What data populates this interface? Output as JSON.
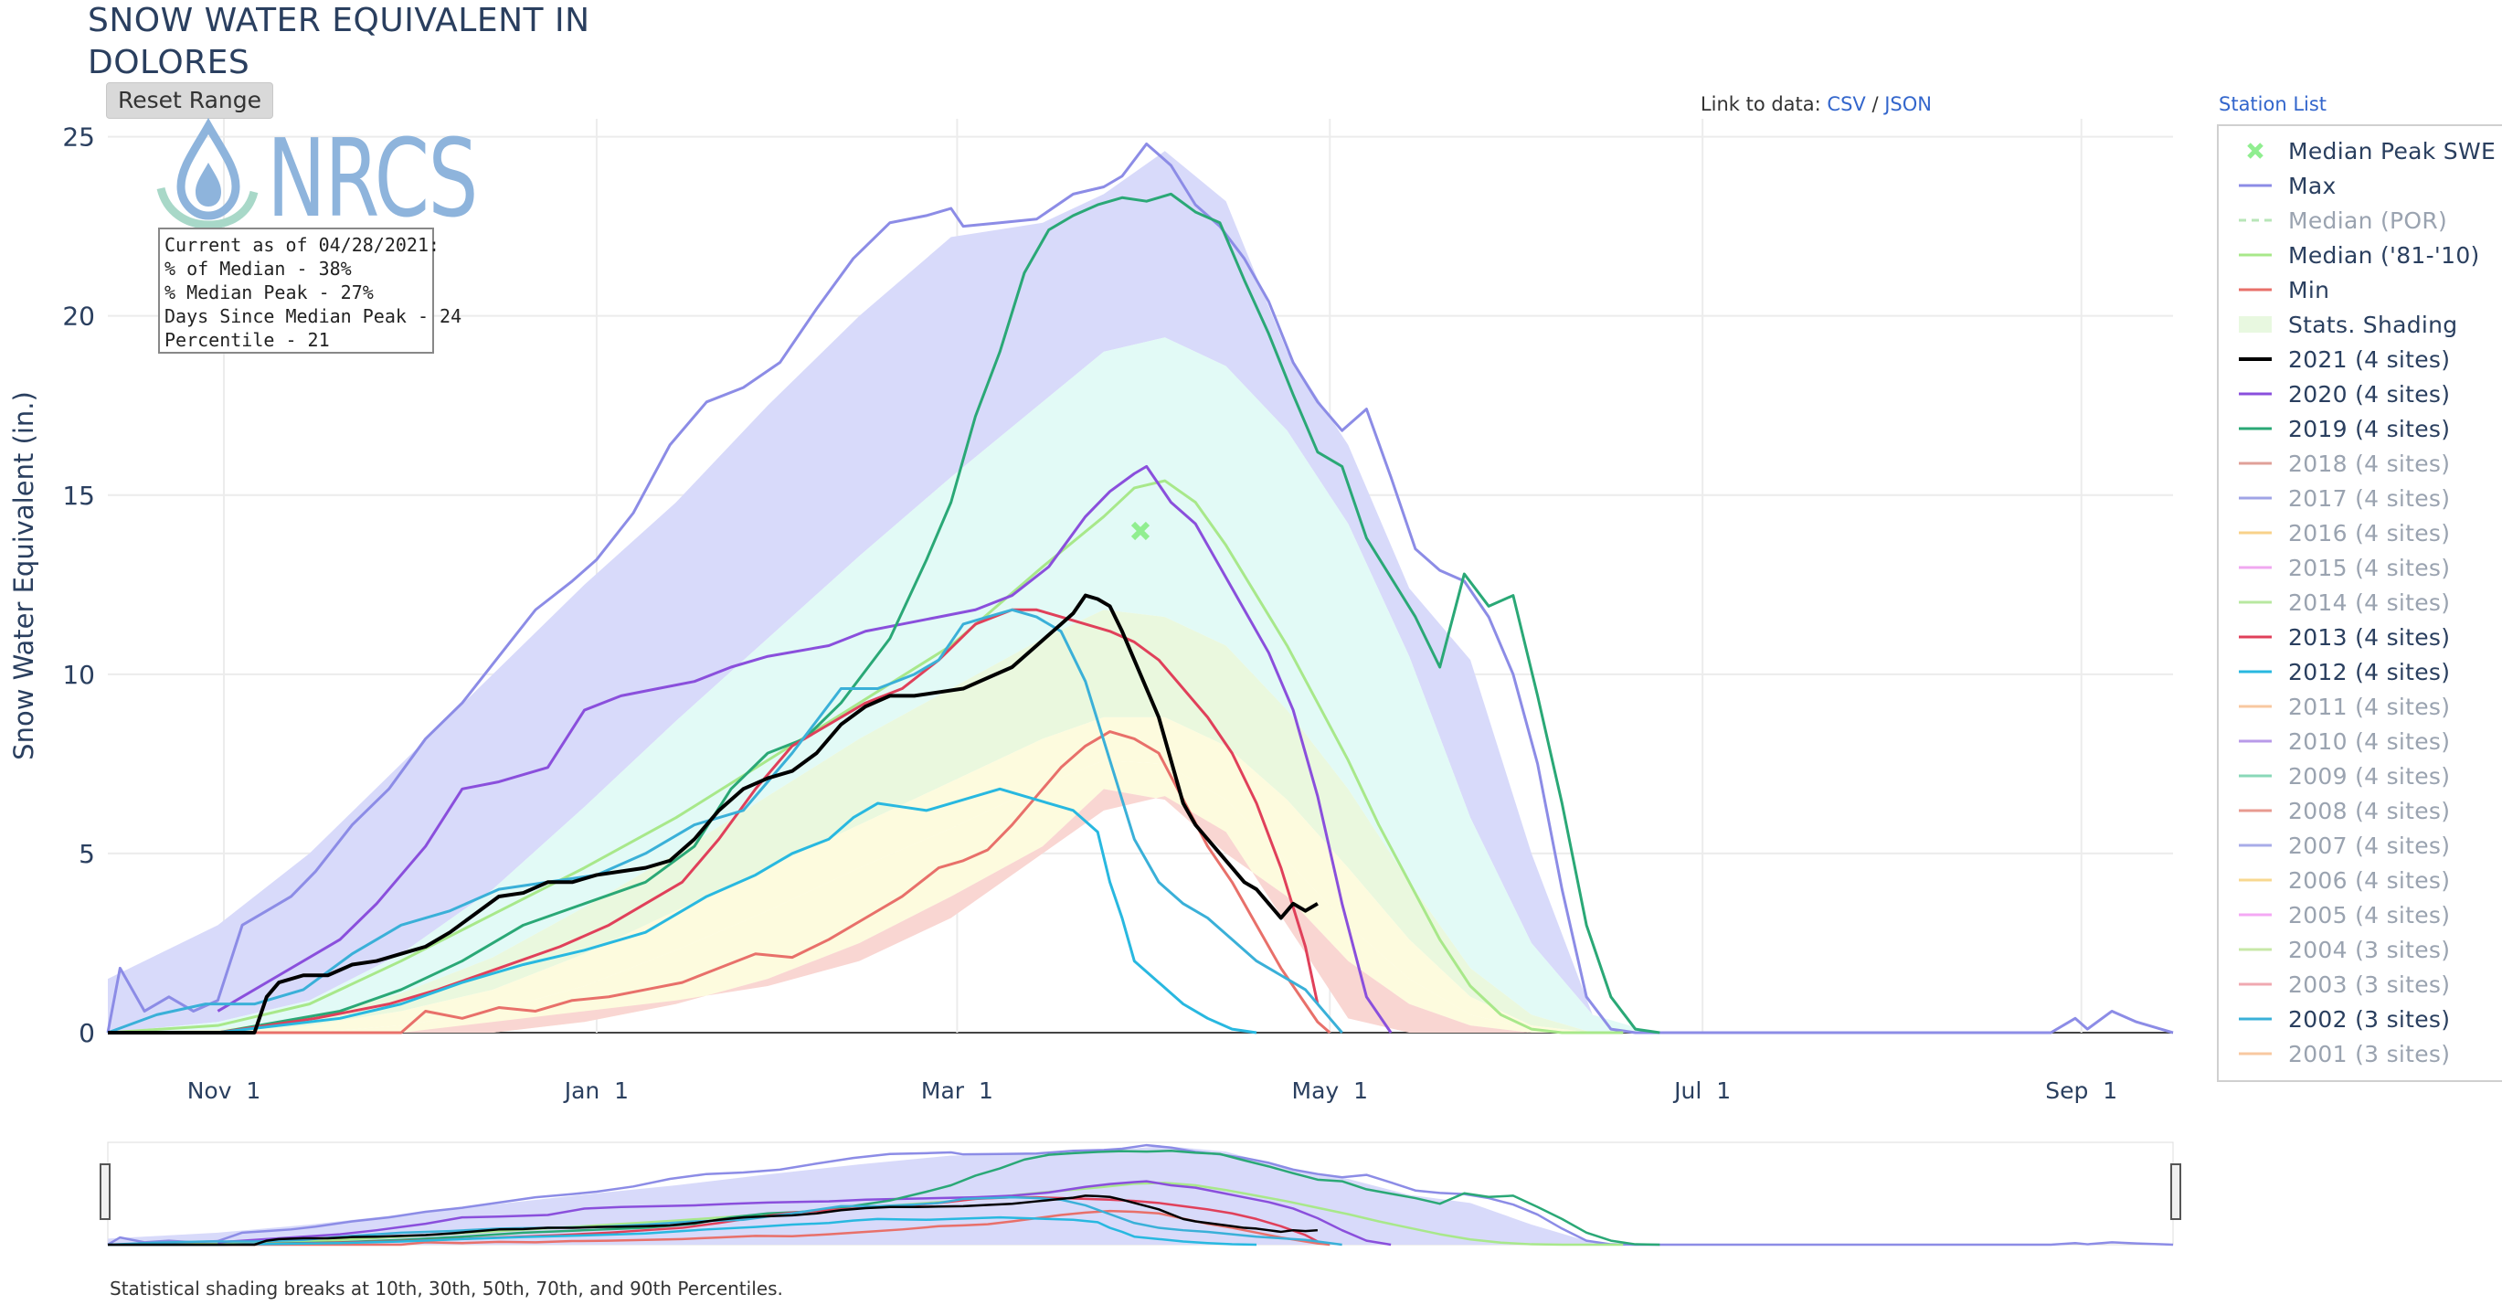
{
  "page": {
    "title_line1": "SNOW WATER EQUIVALENT IN",
    "title_line2": "DOLORES",
    "reset_button": "Reset Range",
    "link_label": "Link to data:",
    "link_csv": "CSV",
    "link_sep": "/",
    "link_json": "JSON",
    "station_list": "Station List",
    "footnote": "Statistical shading breaks at 10th, 30th, 50th, 70th, and 90th Percentiles."
  },
  "logo": {
    "text": "NRCS"
  },
  "info_box": {
    "line1": "Current as of 04/28/2021:",
    "line2": "% of Median - 38%",
    "line3": "% Median Peak - 27%",
    "line4": "Days Since Median Peak - 24",
    "line5": "Percentile - 21"
  },
  "legend": [
    {
      "label": "Median Peak SWE",
      "color": "#90ee90",
      "kind": "marker",
      "active": true
    },
    {
      "label": "Max",
      "color": "#8c8ce6",
      "kind": "line",
      "active": true
    },
    {
      "label": "Median (POR)",
      "color": "#b8e6b8",
      "kind": "dash",
      "active": false
    },
    {
      "label": "Median ('81-'10)",
      "color": "#a8e88a",
      "kind": "line",
      "active": true
    },
    {
      "label": "Min",
      "color": "#e8706a",
      "kind": "line",
      "active": true
    },
    {
      "label": "Stats. Shading",
      "color": "#e8f8e0",
      "kind": "box",
      "active": true
    },
    {
      "label": "2021 (4 sites)",
      "color": "#000000",
      "kind": "line",
      "active": true
    },
    {
      "label": "2020 (4 sites)",
      "color": "#8a4fdc",
      "kind": "line",
      "active": true
    },
    {
      "label": "2019 (4 sites)",
      "color": "#2aa876",
      "kind": "line",
      "active": true
    },
    {
      "label": "2018 (4 sites)",
      "color": "#e0a098",
      "kind": "line",
      "active": false
    },
    {
      "label": "2017 (4 sites)",
      "color": "#a0a4e6",
      "kind": "line",
      "active": false
    },
    {
      "label": "2016 (4 sites)",
      "color": "#f8d28a",
      "kind": "line",
      "active": false
    },
    {
      "label": "2015 (4 sites)",
      "color": "#f0a8f0",
      "kind": "line",
      "active": false
    },
    {
      "label": "2014 (4 sites)",
      "color": "#b8e8a0",
      "kind": "line",
      "active": false
    },
    {
      "label": "2013 (4 sites)",
      "color": "#e0405a",
      "kind": "line",
      "active": true
    },
    {
      "label": "2012 (4 sites)",
      "color": "#28b8e0",
      "kind": "line",
      "active": true
    },
    {
      "label": "2011 (4 sites)",
      "color": "#f8c8a0",
      "kind": "line",
      "active": false
    },
    {
      "label": "2010 (4 sites)",
      "color": "#b89ae8",
      "kind": "line",
      "active": false
    },
    {
      "label": "2009 (4 sites)",
      "color": "#8ad8b8",
      "kind": "line",
      "active": false
    },
    {
      "label": "2008 (4 sites)",
      "color": "#e89a90",
      "kind": "line",
      "active": false
    },
    {
      "label": "2007 (4 sites)",
      "color": "#a8ace8",
      "kind": "line",
      "active": false
    },
    {
      "label": "2006 (4 sites)",
      "color": "#f8d890",
      "kind": "line",
      "active": false
    },
    {
      "label": "2005 (4 sites)",
      "color": "#f4a8f4",
      "kind": "line",
      "active": false
    },
    {
      "label": "2004 (3 sites)",
      "color": "#c8e8a8",
      "kind": "line",
      "active": false
    },
    {
      "label": "2003 (3 sites)",
      "color": "#f0a8b0",
      "kind": "line",
      "active": false
    },
    {
      "label": "2002 (3 sites)",
      "color": "#3ab0d8",
      "kind": "line",
      "active": true
    },
    {
      "label": "2001 (3 sites)",
      "color": "#f8c8a0",
      "kind": "line",
      "active": false
    }
  ],
  "chart_data": {
    "type": "line",
    "title": "SNOW WATER EQUIVALENT IN DOLORES",
    "ylabel": "Snow Water Equivalent (in.)",
    "xlabel": "",
    "x_unit": "day-of-water-year (Oct 1 = 0)",
    "xlim": [
      12,
      350
    ],
    "ylim": [
      0,
      25.5
    ],
    "yticks": [
      0,
      5,
      10,
      15,
      20,
      25
    ],
    "xticks": [
      {
        "label": "Nov 1",
        "day": 31
      },
      {
        "label": "Jan 1",
        "day": 92
      },
      {
        "label": "Mar 1",
        "day": 151
      },
      {
        "label": "May 1",
        "day": 212
      },
      {
        "label": "Jul 1",
        "day": 273
      },
      {
        "label": "Sep 1",
        "day": 335
      }
    ],
    "grid": true,
    "legend_position": "right",
    "median_peak": {
      "day": 181,
      "value": 14.0
    },
    "shading": {
      "x": [
        12,
        30,
        45,
        60,
        75,
        90,
        105,
        120,
        135,
        150,
        165,
        175,
        185,
        195,
        205,
        215,
        225,
        235,
        245,
        255,
        265
      ],
      "p10": [
        0,
        0,
        0,
        0,
        0,
        0.3,
        0.8,
        1.5,
        2.5,
        3.8,
        5.2,
        6.8,
        6.5,
        5.0,
        3.8,
        2.0,
        0.8,
        0.2,
        0,
        0,
        0
      ],
      "p30": [
        0,
        0,
        0,
        0.2,
        0.6,
        1.3,
        2.3,
        3.4,
        4.6,
        5.7,
        6.9,
        7.6,
        7.5,
        6.5,
        4.8,
        3.0,
        1.5,
        0.5,
        0.1,
        0,
        0
      ],
      "p50": [
        0,
        0,
        0.2,
        0.6,
        1.2,
        2.2,
        3.4,
        4.6,
        5.8,
        7.0,
        8.2,
        8.8,
        8.8,
        8.0,
        6.5,
        4.6,
        2.6,
        1.0,
        0.2,
        0,
        0
      ],
      "p70": [
        0,
        0.1,
        0.4,
        1.1,
        2.1,
        3.5,
        5.0,
        6.6,
        8.2,
        9.6,
        11.0,
        11.8,
        11.6,
        10.8,
        9.0,
        6.8,
        4.2,
        1.8,
        0.5,
        0,
        0
      ],
      "p90": [
        0,
        0.3,
        0.9,
        2.2,
        4.0,
        6.3,
        8.7,
        11.0,
        13.3,
        15.5,
        17.6,
        19.0,
        19.4,
        18.6,
        16.8,
        14.2,
        10.5,
        6.0,
        2.5,
        0.5,
        0
      ],
      "max": [
        1.5,
        3.0,
        5.0,
        7.5,
        10.0,
        12.5,
        14.8,
        17.5,
        20.0,
        22.2,
        22.6,
        23.4,
        24.6,
        23.2,
        19.0,
        16.4,
        12.4,
        10.4,
        5.0,
        0.5,
        0
      ],
      "min": [
        0,
        0,
        0,
        0,
        0.3,
        0.6,
        0.9,
        1.3,
        2.0,
        3.2,
        5.0,
        6.2,
        6.6,
        5.6,
        3.0,
        0.4,
        0,
        0,
        0,
        0,
        0
      ]
    },
    "series": [
      {
        "name": "Max",
        "color": "#8c8ce6",
        "width": 3,
        "x": [
          12,
          14,
          18,
          22,
          26,
          30,
          34,
          38,
          42,
          46,
          52,
          58,
          64,
          70,
          76,
          82,
          88,
          92,
          98,
          104,
          110,
          116,
          122,
          128,
          134,
          140,
          146,
          150,
          152,
          158,
          164,
          170,
          175,
          178,
          182,
          186,
          190,
          194,
          198,
          202,
          206,
          210,
          214,
          218,
          222,
          226,
          230,
          234,
          238,
          242,
          246,
          250,
          254,
          258,
          262,
          266,
          270,
          274,
          330,
          334,
          336,
          340,
          344,
          348,
          350
        ],
        "y": [
          0,
          1.8,
          0.6,
          1.0,
          0.6,
          0.9,
          3.0,
          3.4,
          3.8,
          4.5,
          5.8,
          6.8,
          8.2,
          9.2,
          10.5,
          11.8,
          12.6,
          13.2,
          14.5,
          16.4,
          17.6,
          18.0,
          18.7,
          20.2,
          21.6,
          22.6,
          22.8,
          23.0,
          22.5,
          22.6,
          22.7,
          23.4,
          23.6,
          23.9,
          24.8,
          24.2,
          23.1,
          22.5,
          21.6,
          20.4,
          18.7,
          17.6,
          16.8,
          17.4,
          15.5,
          13.5,
          12.9,
          12.6,
          11.6,
          10.0,
          7.5,
          4.0,
          1.0,
          0.1,
          0,
          0,
          0,
          0,
          0,
          0.4,
          0.1,
          0.6,
          0.3,
          0.1,
          0
        ]
      },
      {
        "name": "Median ('81-'10)",
        "color": "#a8e88a",
        "width": 3,
        "x": [
          12,
          30,
          45,
          60,
          75,
          90,
          105,
          120,
          135,
          150,
          165,
          175,
          180,
          185,
          190,
          195,
          200,
          205,
          210,
          215,
          220,
          225,
          230,
          235,
          240,
          245,
          250,
          255,
          260
        ],
        "y": [
          0,
          0.2,
          0.8,
          2.0,
          3.3,
          4.6,
          6.0,
          7.6,
          9.2,
          10.8,
          13.0,
          14.4,
          15.2,
          15.4,
          14.8,
          13.6,
          12.2,
          10.8,
          9.2,
          7.6,
          5.8,
          4.2,
          2.6,
          1.3,
          0.5,
          0.1,
          0,
          0,
          0
        ]
      },
      {
        "name": "Min",
        "color": "#e8706a",
        "width": 3,
        "x": [
          12,
          60,
          64,
          70,
          76,
          82,
          88,
          94,
          100,
          106,
          112,
          118,
          124,
          130,
          136,
          142,
          148,
          152,
          156,
          160,
          164,
          168,
          172,
          176,
          180,
          184,
          188,
          192,
          196,
          200,
          204,
          208,
          210,
          212
        ],
        "y": [
          0,
          0,
          0.6,
          0.4,
          0.7,
          0.6,
          0.9,
          1.0,
          1.2,
          1.4,
          1.8,
          2.2,
          2.1,
          2.6,
          3.2,
          3.8,
          4.6,
          4.8,
          5.1,
          5.8,
          6.6,
          7.4,
          8.0,
          8.4,
          8.2,
          7.8,
          6.5,
          5.2,
          4.2,
          3.0,
          1.8,
          0.8,
          0.3,
          0
        ]
      },
      {
        "name": "2020 (4 sites)",
        "color": "#8a4fdc",
        "width": 3,
        "x": [
          30,
          40,
          50,
          56,
          60,
          64,
          70,
          76,
          84,
          90,
          96,
          102,
          108,
          114,
          120,
          130,
          136,
          142,
          148,
          154,
          160,
          166,
          172,
          176,
          180,
          182,
          186,
          190,
          194,
          198,
          202,
          206,
          210,
          214,
          218,
          222
        ],
        "y": [
          0.6,
          1.6,
          2.6,
          3.6,
          4.4,
          5.2,
          6.8,
          7.0,
          7.4,
          9.0,
          9.4,
          9.6,
          9.8,
          10.2,
          10.5,
          10.8,
          11.2,
          11.4,
          11.6,
          11.8,
          12.2,
          13.0,
          14.4,
          15.1,
          15.6,
          15.8,
          14.8,
          14.2,
          13.0,
          11.8,
          10.6,
          9.0,
          6.6,
          3.6,
          1.0,
          0
        ]
      },
      {
        "name": "2019 (4 sites)",
        "color": "#2aa876",
        "width": 3,
        "x": [
          12,
          30,
          40,
          50,
          60,
          70,
          80,
          90,
          100,
          108,
          114,
          120,
          126,
          132,
          140,
          146,
          150,
          154,
          158,
          162,
          166,
          170,
          174,
          178,
          182,
          186,
          190,
          194,
          198,
          202,
          206,
          210,
          214,
          218,
          222,
          226,
          230,
          234,
          238,
          242,
          246,
          250,
          254,
          258,
          262,
          266
        ],
        "y": [
          0,
          0,
          0.3,
          0.6,
          1.2,
          2.0,
          3.0,
          3.6,
          4.2,
          5.2,
          6.8,
          7.8,
          8.2,
          9.2,
          11.0,
          13.2,
          14.8,
          17.2,
          19.0,
          21.2,
          22.4,
          22.8,
          23.1,
          23.3,
          23.2,
          23.4,
          22.9,
          22.6,
          21.0,
          19.5,
          17.8,
          16.2,
          15.8,
          13.8,
          12.7,
          11.6,
          10.2,
          12.8,
          11.9,
          12.2,
          9.4,
          6.4,
          3.0,
          1.0,
          0.1,
          0
        ]
      },
      {
        "name": "2013 (4 sites)",
        "color": "#e0405a",
        "width": 3,
        "x": [
          12,
          30,
          46,
          58,
          66,
          76,
          86,
          94,
          100,
          106,
          112,
          118,
          124,
          130,
          136,
          142,
          148,
          154,
          160,
          164,
          168,
          172,
          176,
          180,
          184,
          188,
          192,
          196,
          200,
          204,
          208,
          210
        ],
        "y": [
          0,
          0,
          0.4,
          0.8,
          1.2,
          1.8,
          2.4,
          3.0,
          3.6,
          4.2,
          5.4,
          6.8,
          8.0,
          8.6,
          9.2,
          9.6,
          10.4,
          11.4,
          11.8,
          11.8,
          11.6,
          11.4,
          11.2,
          10.9,
          10.4,
          9.6,
          8.8,
          7.8,
          6.4,
          4.6,
          2.4,
          0.8
        ]
      },
      {
        "name": "2002 (3 sites)",
        "color": "#3ab0d8",
        "width": 3,
        "x": [
          12,
          20,
          28,
          36,
          44,
          52,
          60,
          68,
          76,
          84,
          92,
          100,
          108,
          116,
          124,
          132,
          138,
          144,
          148,
          152,
          156,
          160,
          164,
          168,
          172,
          176,
          180,
          184,
          188,
          192,
          196,
          200,
          204,
          208,
          212,
          214
        ],
        "y": [
          0,
          0.5,
          0.8,
          0.8,
          1.2,
          2.2,
          3.0,
          3.4,
          4.0,
          4.2,
          4.4,
          5.0,
          5.8,
          6.2,
          7.8,
          9.6,
          9.6,
          10.0,
          10.4,
          11.4,
          11.6,
          11.8,
          11.6,
          11.2,
          9.8,
          7.6,
          5.4,
          4.2,
          3.6,
          3.2,
          2.6,
          2.0,
          1.6,
          1.2,
          0.4,
          0
        ]
      },
      {
        "name": "2012 (4 sites)",
        "color": "#28b8e0",
        "width": 3,
        "x": [
          12,
          30,
          40,
          50,
          60,
          70,
          80,
          90,
          100,
          110,
          118,
          124,
          130,
          134,
          138,
          142,
          146,
          150,
          154,
          158,
          162,
          166,
          170,
          174,
          176,
          178,
          180,
          184,
          188,
          192,
          196,
          200
        ],
        "y": [
          0,
          0,
          0.2,
          0.4,
          0.8,
          1.4,
          1.9,
          2.3,
          2.8,
          3.8,
          4.4,
          5.0,
          5.4,
          6.0,
          6.4,
          6.3,
          6.2,
          6.4,
          6.6,
          6.8,
          6.6,
          6.4,
          6.2,
          5.6,
          4.2,
          3.2,
          2.0,
          1.4,
          0.8,
          0.4,
          0.1,
          0
        ]
      },
      {
        "name": "2021 (4 sites)",
        "color": "#000000",
        "width": 4,
        "x": [
          12,
          36,
          38,
          40,
          44,
          48,
          52,
          56,
          60,
          64,
          68,
          72,
          76,
          80,
          84,
          88,
          92,
          96,
          100,
          104,
          108,
          112,
          116,
          120,
          124,
          128,
          132,
          136,
          140,
          144,
          148,
          152,
          156,
          160,
          164,
          168,
          170,
          172,
          174,
          176,
          178,
          180,
          182,
          184,
          186,
          188,
          190,
          192,
          194,
          196,
          198,
          200,
          202,
          204,
          206,
          208,
          210
        ],
        "y": [
          0,
          0,
          1.0,
          1.4,
          1.6,
          1.6,
          1.9,
          2.0,
          2.2,
          2.4,
          2.8,
          3.3,
          3.8,
          3.9,
          4.2,
          4.2,
          4.4,
          4.5,
          4.6,
          4.8,
          5.4,
          6.2,
          6.8,
          7.1,
          7.3,
          7.8,
          8.6,
          9.1,
          9.4,
          9.4,
          9.5,
          9.6,
          9.9,
          10.2,
          10.8,
          11.4,
          11.7,
          12.2,
          12.1,
          11.9,
          11.2,
          10.4,
          9.6,
          8.8,
          7.6,
          6.4,
          5.8,
          5.4,
          5.0,
          4.6,
          4.2,
          4.0,
          3.6,
          3.2,
          3.6,
          3.4,
          3.6
        ]
      }
    ]
  }
}
